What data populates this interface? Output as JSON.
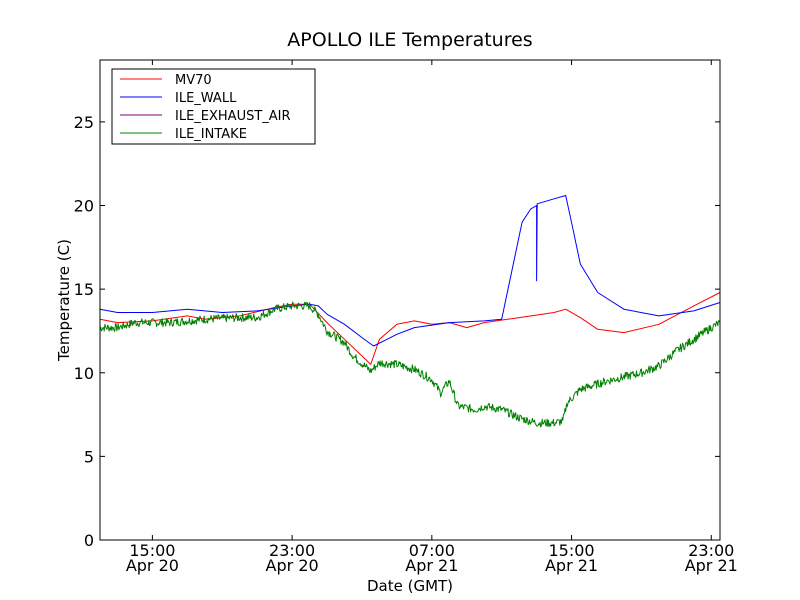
{
  "chart_data": {
    "type": "line",
    "title": "APOLLO ILE Temperatures",
    "xlabel": "Date (GMT)",
    "ylabel": "Temperature (C)",
    "xlim": [
      "2012-04-20T12:00",
      "2012-04-21T23:30"
    ],
    "ylim": [
      0,
      28.7
    ],
    "grid": false,
    "legend_position": "top-left",
    "xticks": [
      {
        "x": "2012-04-20T15:00",
        "time": "15:00",
        "date": "Apr 20"
      },
      {
        "x": "2012-04-20T23:00",
        "time": "23:00",
        "date": "Apr 20"
      },
      {
        "x": "2012-04-21T07:00",
        "time": "07:00",
        "date": "Apr 21"
      },
      {
        "x": "2012-04-21T15:00",
        "time": "15:00",
        "date": "Apr 21"
      },
      {
        "x": "2012-04-21T23:00",
        "time": "23:00",
        "date": "Apr 21"
      }
    ],
    "yticks": [
      0,
      5,
      10,
      15,
      20,
      25
    ],
    "series": [
      {
        "name": "MV70",
        "color": "#ff0000",
        "points": [
          [
            "2012-04-20T12:00",
            13.2
          ],
          [
            "2012-04-20T13:00",
            13.0
          ],
          [
            "2012-04-20T15:00",
            13.1
          ],
          [
            "2012-04-20T17:00",
            13.4
          ],
          [
            "2012-04-20T18:00",
            13.2
          ],
          [
            "2012-04-20T20:00",
            13.4
          ],
          [
            "2012-04-20T22:00",
            13.9
          ],
          [
            "2012-04-20T23:00",
            14.1
          ],
          [
            "2012-04-21T00:00",
            14.1
          ],
          [
            "2012-04-21T01:00",
            13.0
          ],
          [
            "2012-04-21T02:00",
            12.0
          ],
          [
            "2012-04-21T03:00",
            11.0
          ],
          [
            "2012-04-21T03:30",
            10.5
          ],
          [
            "2012-04-21T04:00",
            12.0
          ],
          [
            "2012-04-21T05:00",
            12.9
          ],
          [
            "2012-04-21T06:00",
            13.1
          ],
          [
            "2012-04-21T07:00",
            12.9
          ],
          [
            "2012-04-21T08:00",
            13.0
          ],
          [
            "2012-04-21T09:00",
            12.7
          ],
          [
            "2012-04-21T10:00",
            13.0
          ],
          [
            "2012-04-21T12:00",
            13.3
          ],
          [
            "2012-04-21T14:00",
            13.6
          ],
          [
            "2012-04-21T14:40",
            13.8
          ],
          [
            "2012-04-21T15:30",
            13.3
          ],
          [
            "2012-04-21T16:30",
            12.6
          ],
          [
            "2012-04-21T18:00",
            12.4
          ],
          [
            "2012-04-21T20:00",
            12.9
          ],
          [
            "2012-04-21T22:00",
            14.0
          ],
          [
            "2012-04-21T23:30",
            14.8
          ]
        ]
      },
      {
        "name": "ILE_WALL",
        "color": "#0000ff",
        "points": [
          [
            "2012-04-20T12:00",
            13.8
          ],
          [
            "2012-04-20T13:00",
            13.6
          ],
          [
            "2012-04-20T15:00",
            13.6
          ],
          [
            "2012-04-20T17:00",
            13.8
          ],
          [
            "2012-04-20T19:00",
            13.6
          ],
          [
            "2012-04-20T21:00",
            13.7
          ],
          [
            "2012-04-20T23:00",
            14.0
          ],
          [
            "2012-04-21T00:00",
            14.1
          ],
          [
            "2012-04-21T00:30",
            14.0
          ],
          [
            "2012-04-21T01:00",
            13.5
          ],
          [
            "2012-04-21T02:00",
            12.9
          ],
          [
            "2012-04-21T03:00",
            12.1
          ],
          [
            "2012-04-21T03:40",
            11.6
          ],
          [
            "2012-04-21T05:00",
            12.3
          ],
          [
            "2012-04-21T06:00",
            12.7
          ],
          [
            "2012-04-21T08:00",
            13.0
          ],
          [
            "2012-04-21T10:00",
            13.1
          ],
          [
            "2012-04-21T11:00",
            13.2
          ],
          [
            "2012-04-21T11:40",
            16.5
          ],
          [
            "2012-04-21T12:10",
            19.0
          ],
          [
            "2012-04-21T12:40",
            19.8
          ],
          [
            "2012-04-21T13:00",
            20.0
          ],
          [
            "2012-04-21T13:00",
            15.5
          ],
          [
            "2012-04-21T13:02",
            20.1
          ],
          [
            "2012-04-21T14:00",
            20.4
          ],
          [
            "2012-04-21T14:40",
            20.6
          ],
          [
            "2012-04-21T15:00",
            19.0
          ],
          [
            "2012-04-21T15:30",
            16.5
          ],
          [
            "2012-04-21T16:30",
            14.8
          ],
          [
            "2012-04-21T18:00",
            13.8
          ],
          [
            "2012-04-21T20:00",
            13.4
          ],
          [
            "2012-04-21T22:00",
            13.7
          ],
          [
            "2012-04-21T23:30",
            14.2
          ]
        ]
      },
      {
        "name": "ILE_EXHAUST_AIR",
        "color": "#800080",
        "points": []
      },
      {
        "name": "ILE_INTAKE",
        "color": "#008000",
        "noise": 0.25,
        "points": [
          [
            "2012-04-20T12:00",
            12.7
          ],
          [
            "2012-04-20T13:00",
            12.7
          ],
          [
            "2012-04-20T14:00",
            13.0
          ],
          [
            "2012-04-20T16:00",
            13.0
          ],
          [
            "2012-04-20T18:00",
            13.2
          ],
          [
            "2012-04-20T20:00",
            13.3
          ],
          [
            "2012-04-20T21:00",
            13.3
          ],
          [
            "2012-04-20T22:00",
            13.8
          ],
          [
            "2012-04-20T23:00",
            14.0
          ],
          [
            "2012-04-21T00:00",
            14.0
          ],
          [
            "2012-04-21T00:30",
            13.5
          ],
          [
            "2012-04-21T01:00",
            12.5
          ],
          [
            "2012-04-21T02:00",
            11.8
          ],
          [
            "2012-04-21T02:30",
            11.0
          ],
          [
            "2012-04-21T03:30",
            10.1
          ],
          [
            "2012-04-21T04:00",
            10.6
          ],
          [
            "2012-04-21T05:00",
            10.5
          ],
          [
            "2012-04-21T06:00",
            10.2
          ],
          [
            "2012-04-21T07:00",
            9.6
          ],
          [
            "2012-04-21T07:30",
            8.8
          ],
          [
            "2012-04-21T08:00",
            9.5
          ],
          [
            "2012-04-21T08:30",
            8.0
          ],
          [
            "2012-04-21T09:30",
            7.8
          ],
          [
            "2012-04-21T10:00",
            8.0
          ],
          [
            "2012-04-21T11:00",
            7.8
          ],
          [
            "2012-04-21T12:00",
            7.3
          ],
          [
            "2012-04-21T13:00",
            7.0
          ],
          [
            "2012-04-21T14:00",
            7.0
          ],
          [
            "2012-04-21T14:30",
            7.1
          ],
          [
            "2012-04-21T14:45",
            8.2
          ],
          [
            "2012-04-21T15:30",
            9.0
          ],
          [
            "2012-04-21T17:00",
            9.5
          ],
          [
            "2012-04-21T19:00",
            10.0
          ],
          [
            "2012-04-21T20:00",
            10.4
          ],
          [
            "2012-04-21T21:00",
            11.3
          ],
          [
            "2012-04-21T22:00",
            12.0
          ],
          [
            "2012-04-21T23:00",
            12.7
          ],
          [
            "2012-04-21T23:30",
            13.0
          ]
        ]
      }
    ]
  }
}
